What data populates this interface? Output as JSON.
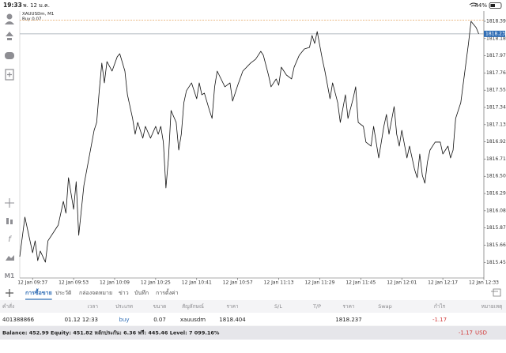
{
  "status_bar": {
    "time": "19:33",
    "date": "พ. 12 ม.ค.",
    "battery": "44%"
  },
  "toolbar": {
    "timeframe": "M1"
  },
  "chart_data": {
    "type": "line",
    "symbol": "XAUUSDm, M1",
    "order_label": "Buy 0.07",
    "color": "#111111",
    "grid": false,
    "x": [
      "12 Jan 09:32",
      "12 Jan 09:33",
      "12 Jan 09:34",
      "12 Jan 09:35",
      "12 Jan 09:37",
      "12 Jan 09:38",
      "12 Jan 09:39",
      "12 Jan 09:40",
      "12 Jan 09:42",
      "12 Jan 09:43",
      "12 Jan 09:45",
      "12 Jan 09:47",
      "12 Jan 09:49",
      "12 Jan 09:50",
      "12 Jan 09:51",
      "12 Jan 09:53",
      "12 Jan 09:54",
      "12 Jan 09:55",
      "12 Jan 09:57",
      "12 Jan 09:59",
      "12 Jan 10:01",
      "12 Jan 10:02",
      "12 Jan 10:03",
      "12 Jan 10:04",
      "12 Jan 10:05",
      "12 Jan 10:06",
      "12 Jan 10:08",
      "12 Jan 10:10",
      "12 Jan 10:11",
      "12 Jan 10:13",
      "12 Jan 10:14",
      "12 Jan 10:16",
      "12 Jan 10:17",
      "12 Jan 10:18",
      "12 Jan 10:20",
      "12 Jan 10:21",
      "12 Jan 10:23",
      "12 Jan 10:25",
      "12 Jan 10:26",
      "12 Jan 10:27",
      "12 Jan 10:28",
      "12 Jan 10:29",
      "12 Jan 10:30",
      "12 Jan 10:31",
      "12 Jan 10:33",
      "12 Jan 10:34",
      "12 Jan 10:35",
      "12 Jan 10:36",
      "12 Jan 10:37",
      "12 Jan 10:39",
      "12 Jan 10:41",
      "12 Jan 10:42",
      "12 Jan 10:43",
      "12 Jan 10:44",
      "12 Jan 10:46",
      "12 Jan 10:47",
      "12 Jan 10:48",
      "12 Jan 10:49",
      "12 Jan 10:52",
      "12 Jan 10:54",
      "12 Jan 10:55",
      "12 Jan 10:57",
      "12 Jan 10:59",
      "12 Jan 11:02",
      "12 Jan 11:04",
      "12 Jan 11:06",
      "12 Jan 11:07",
      "12 Jan 11:09",
      "12 Jan 11:10",
      "12 Jan 11:12",
      "12 Jan 11:13",
      "12 Jan 11:14",
      "12 Jan 11:16",
      "12 Jan 11:18",
      "12 Jan 11:19",
      "12 Jan 11:21",
      "12 Jan 11:23",
      "12 Jan 11:25",
      "12 Jan 11:26",
      "12 Jan 11:27",
      "12 Jan 11:28",
      "12 Jan 11:30",
      "12 Jan 11:31",
      "12 Jan 11:33",
      "12 Jan 11:34",
      "12 Jan 11:36",
      "12 Jan 11:37",
      "12 Jan 11:39",
      "12 Jan 11:40",
      "12 Jan 11:42",
      "12 Jan 11:43",
      "12 Jan 11:44",
      "12 Jan 11:46",
      "12 Jan 11:47",
      "12 Jan 11:49",
      "12 Jan 11:50",
      "12 Jan 11:52",
      "12 Jan 11:54",
      "12 Jan 11:55",
      "12 Jan 11:56",
      "12 Jan 11:58",
      "12 Jan 11:59",
      "12 Jan 12:00",
      "12 Jan 12:01",
      "12 Jan 12:03",
      "12 Jan 12:04",
      "12 Jan 12:06",
      "12 Jan 12:07",
      "12 Jan 12:08",
      "12 Jan 12:09",
      "12 Jan 12:10",
      "12 Jan 12:11",
      "12 Jan 12:12",
      "12 Jan 12:14",
      "12 Jan 12:16",
      "12 Jan 12:17",
      "12 Jan 12:19",
      "12 Jan 12:20",
      "12 Jan 12:21",
      "12 Jan 12:22",
      "12 Jan 12:24",
      "12 Jan 12:26",
      "12 Jan 12:27",
      "12 Jan 12:28",
      "12 Jan 12:30",
      "12 Jan 12:31"
    ],
    "values": [
      1815.52,
      1815.761,
      1816.002,
      1815.857,
      1815.568,
      1815.713,
      1815.472,
      1815.588,
      1815.453,
      1815.713,
      1815.809,
      1815.905,
      1816.194,
      1816.05,
      1816.483,
      1816.098,
      1816.435,
      1815.78,
      1816.387,
      1816.724,
      1817.061,
      1817.157,
      1817.543,
      1817.88,
      1817.639,
      1817.899,
      1817.783,
      1817.957,
      1817.995,
      1817.783,
      1817.494,
      1817.206,
      1817.013,
      1817.157,
      1816.965,
      1817.109,
      1816.965,
      1817.109,
      1817.013,
      1817.109,
      1816.917,
      1816.358,
      1816.724,
      1817.302,
      1817.157,
      1816.82,
      1817.013,
      1817.398,
      1817.543,
      1817.639,
      1817.446,
      1817.639,
      1817.494,
      1817.514,
      1817.302,
      1817.206,
      1817.591,
      1817.783,
      1817.591,
      1817.639,
      1817.417,
      1817.61,
      1817.783,
      1817.88,
      1817.928,
      1818.024,
      1817.976,
      1817.735,
      1817.591,
      1817.687,
      1817.61,
      1817.831,
      1817.735,
      1817.687,
      1817.831,
      1817.976,
      1818.053,
      1818.072,
      1818.217,
      1818.12,
      1818.265,
      1817.928,
      1817.783,
      1817.446,
      1817.639,
      1817.398,
      1817.157,
      1817.494,
      1817.206,
      1817.446,
      1817.591,
      1817.157,
      1817.109,
      1816.917,
      1816.868,
      1817.109,
      1816.724,
      1817.109,
      1817.254,
      1817.013,
      1817.35,
      1817.013,
      1816.868,
      1817.061,
      1816.724,
      1816.868,
      1816.58,
      1816.483,
      1816.772,
      1816.512,
      1816.416,
      1816.676,
      1816.82,
      1816.917,
      1816.917,
      1816.772,
      1816.868,
      1816.724,
      1816.82,
      1817.206,
      1817.398,
      1817.88,
      1818.12,
      1818.39,
      1818.313,
      1818.237
    ],
    "xlim": [
      "12 Jan 09:32",
      "12 Jan 12:33"
    ],
    "xticks": [
      "12 Jan 09:37",
      "12 Jan 09:53",
      "12 Jan 10:09",
      "12 Jan 10:25",
      "12 Jan 10:41",
      "12 Jan 10:57",
      "12 Jan 11:13",
      "12 Jan 11:29",
      "12 Jan 11:45",
      "12 Jan 12:01",
      "12 Jan 12:17",
      "12 Jan 12:33"
    ],
    "ylim": [
      1815.26,
      1818.515
    ],
    "yticks": [
      {
        "value": 1818.39,
        "label": "1818.390"
      },
      {
        "value": 1818.18,
        "label": "1818.180"
      },
      {
        "value": 1817.97,
        "label": "1817.970"
      },
      {
        "value": 1817.76,
        "label": "1817.760"
      },
      {
        "value": 1817.55,
        "label": "1817.550"
      },
      {
        "value": 1817.34,
        "label": "1817.340"
      },
      {
        "value": 1817.13,
        "label": "1817.130"
      },
      {
        "value": 1816.92,
        "label": "1816.920"
      },
      {
        "value": 1816.71,
        "label": "1816.710"
      },
      {
        "value": 1816.5,
        "label": "1816.500"
      },
      {
        "value": 1816.29,
        "label": "1816.290"
      },
      {
        "value": 1816.08,
        "label": "1816.080"
      },
      {
        "value": 1815.87,
        "label": "1815.870"
      },
      {
        "value": 1815.66,
        "label": "1815.660"
      },
      {
        "value": 1815.45,
        "label": "1815.450"
      }
    ],
    "current_price": {
      "value": 1818.237,
      "label": "1818.237",
      "color": "#2f6db5"
    },
    "open_price_line": {
      "value": 1818.404,
      "color": "#e3a15c"
    }
  },
  "tabs": {
    "items": [
      "การซื้อขาย",
      "ประวัติ",
      "กล่องจดหมาย",
      "ข่าว",
      "บันทึก",
      "การตั้งค่า"
    ],
    "active": 0
  },
  "trade_table": {
    "headers": [
      "คำสั่ง",
      "เวลา",
      "ประเภท",
      "ขนาด",
      "สัญลักษณ์",
      "ราคา",
      "S/L",
      "T/P",
      "ราคา",
      "Swap",
      "กำไร",
      "หมายเหตุ"
    ],
    "rows": [
      {
        "order": "401388866",
        "time": "01.12 12:33",
        "type": "buy",
        "volume": "0.07",
        "symbol": "xauusdm",
        "open_price": "1818.404",
        "current_price": "1818.237",
        "profit": "-1.17"
      }
    ]
  },
  "account_summary": {
    "text": "Balance: 452.99 Equity: 451.82 หลักประกัน: 6.36 ฟรี: 445.46 Level: 7 099.16%",
    "profit": "-1.17",
    "currency": "USD"
  }
}
